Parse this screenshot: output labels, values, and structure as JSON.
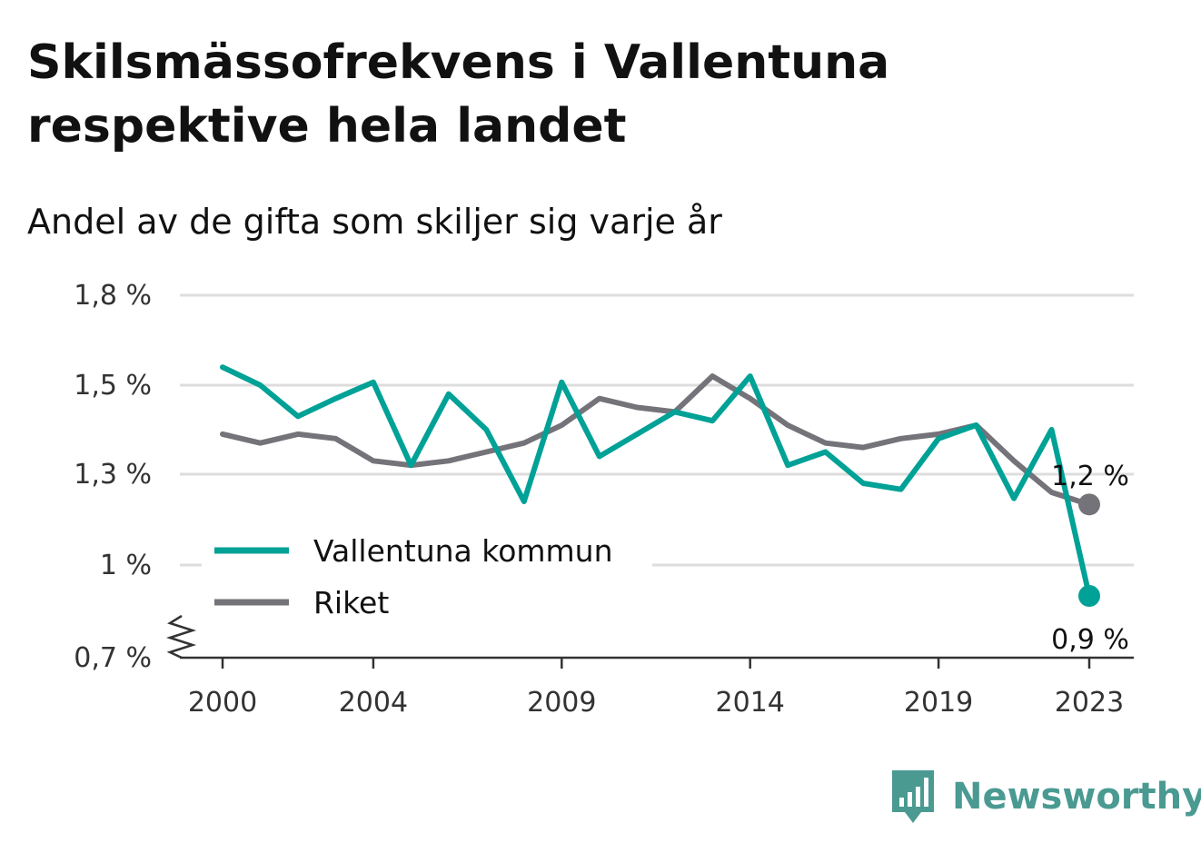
{
  "title": "Skilsmässofrekvens i Vallentuna respektive hela landet",
  "subtitle": "Andel av de gifta som skiljer sig varje år",
  "brand": {
    "name": "Newsworthy",
    "icon": "newsworthy-logo-icon"
  },
  "colors": {
    "vallentuna": "#00a196",
    "riket": "#75737a",
    "grid": "#dddddd",
    "axis": "#333333"
  },
  "chart_data": {
    "type": "line",
    "x": [
      2000,
      2001,
      2002,
      2003,
      2004,
      2005,
      2006,
      2007,
      2008,
      2009,
      2010,
      2011,
      2012,
      2013,
      2014,
      2015,
      2016,
      2017,
      2018,
      2019,
      2020,
      2021,
      2022,
      2023
    ],
    "x_ticks": [
      2000,
      2004,
      2009,
      2014,
      2019,
      2023
    ],
    "x_tick_labels": [
      "2000",
      "2004",
      "2009",
      "2014",
      "2019",
      "2023"
    ],
    "y_ticks": [
      0.7,
      1.0,
      1.3,
      1.5,
      1.8
    ],
    "y_tick_labels": [
      "0,7 %",
      "1 %",
      "1,3 %",
      "1,5 %",
      "1,8 %"
    ],
    "y_axis_break": true,
    "grid": true,
    "legend_position": "bottom-left",
    "series": [
      {
        "name": "Vallentuna kommun",
        "color": "#00a196",
        "values": [
          1.56,
          1.5,
          1.43,
          1.47,
          1.51,
          1.32,
          1.48,
          1.4,
          1.21,
          1.51,
          1.34,
          1.39,
          1.44,
          1.42,
          1.53,
          1.32,
          1.35,
          1.27,
          1.25,
          1.38,
          1.41,
          1.22,
          1.4,
          0.9
        ],
        "end_label": "0,9 %"
      },
      {
        "name": "Riket",
        "color": "#75737a",
        "values": [
          1.39,
          1.37,
          1.39,
          1.38,
          1.33,
          1.32,
          1.33,
          1.35,
          1.37,
          1.41,
          1.47,
          1.45,
          1.44,
          1.53,
          1.47,
          1.41,
          1.37,
          1.36,
          1.38,
          1.39,
          1.41,
          1.33,
          1.24,
          1.2
        ],
        "end_label": "1,2 %"
      }
    ]
  }
}
